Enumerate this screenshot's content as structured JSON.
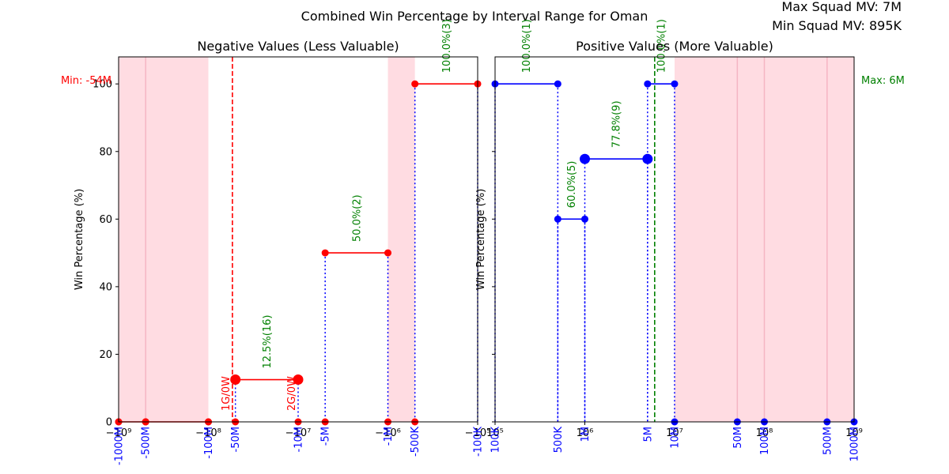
{
  "figure": {
    "title": "Combined Win Percentage by Interval Range for Oman",
    "max_squad_mv": "Max Squad MV: 7M",
    "min_squad_mv": "Min Squad MV: 895K"
  },
  "chart_data": [
    {
      "type": "line",
      "title": "Negative Values (Less Valuable)",
      "ylabel": "Win Percentage (%)",
      "xscale": "symlog",
      "xlim": [
        -1000000000,
        -100000
      ],
      "ylim": [
        0,
        108
      ],
      "yticks": [
        0,
        20,
        40,
        60,
        80,
        100
      ],
      "xticks": [
        {
          "value": -1000000000,
          "label": "−10⁹"
        },
        {
          "value": -100000000,
          "label": "−10⁸"
        },
        {
          "value": -10000000,
          "label": "−10⁷"
        },
        {
          "value": -1000000,
          "label": "−10⁶"
        },
        {
          "value": -100000,
          "label": "−10⁵"
        }
      ],
      "interval_labels": [
        {
          "value": -1000000000,
          "label": "-1000M"
        },
        {
          "value": -500000000,
          "label": "-500M"
        },
        {
          "value": -100000000,
          "label": "-100M"
        },
        {
          "value": -50000000,
          "label": "-50M"
        },
        {
          "value": -10000000,
          "label": "-10M"
        },
        {
          "value": -5000000,
          "label": "-5M"
        },
        {
          "value": -1000000,
          "label": "-1M"
        },
        {
          "value": -500000,
          "label": "-500K"
        },
        {
          "value": -100000,
          "label": "-100K"
        }
      ],
      "line_color": "#ff0000",
      "segments": [
        {
          "x0": -1000000000,
          "x1": -500000000,
          "y": 0,
          "marker": "small"
        },
        {
          "x0": -500000000,
          "x1": -100000000,
          "y": 0,
          "marker": "small"
        },
        {
          "x0": -50000000,
          "x1": -10000000,
          "y": 12.5,
          "marker": "large",
          "label": "12.5%(16)"
        },
        {
          "x0": -5000000,
          "x1": -1000000,
          "y": 50,
          "marker": "small",
          "label": "50.0%(2)"
        },
        {
          "x0": -500000,
          "x1": -100000,
          "y": 100,
          "marker": "small",
          "label": "100.0%(3)"
        }
      ],
      "zero_points": [
        -1000000000,
        -500000000,
        -100000000,
        -50000000,
        -10000000,
        -5000000,
        -1000000,
        -500000
      ],
      "shaded_ranges": [
        [
          -1000000000,
          -100000000
        ],
        [
          -1000000,
          -500000
        ]
      ],
      "shade_dividers": [
        -500000000
      ],
      "reference_line": {
        "x": -54000000,
        "color": "#ff0000",
        "label": "Min: -54M"
      },
      "side_notes": [
        {
          "x": -54000000,
          "label": "1G/0W"
        },
        {
          "x": -10000000,
          "label": "2G/0W"
        }
      ]
    },
    {
      "type": "line",
      "title": "Positive Values (More Valuable)",
      "ylabel": "Win Percentage (%)",
      "xscale": "log",
      "xlim": [
        100000,
        1000000000
      ],
      "ylim": [
        0,
        108
      ],
      "xticks": [
        {
          "value": 100000,
          "label": "10⁵"
        },
        {
          "value": 1000000,
          "label": "10⁶"
        },
        {
          "value": 10000000,
          "label": "10⁷"
        },
        {
          "value": 100000000,
          "label": "10⁸"
        },
        {
          "value": 1000000000,
          "label": "10⁹"
        }
      ],
      "interval_labels": [
        {
          "value": 100000,
          "label": "100K"
        },
        {
          "value": 500000,
          "label": "500K"
        },
        {
          "value": 1000000,
          "label": "1M"
        },
        {
          "value": 5000000,
          "label": "5M"
        },
        {
          "value": 10000000,
          "label": "10M"
        },
        {
          "value": 50000000,
          "label": "50M"
        },
        {
          "value": 100000000,
          "label": "100M"
        },
        {
          "value": 500000000,
          "label": "500M"
        },
        {
          "value": 1000000000,
          "label": "1000M"
        }
      ],
      "line_color": "#0000ff",
      "segments": [
        {
          "x0": 100000,
          "x1": 500000,
          "y": 100,
          "marker": "small",
          "label": "100.0%(1)"
        },
        {
          "x0": 500000,
          "x1": 1000000,
          "y": 60,
          "marker": "small",
          "label": "60.0%(5)"
        },
        {
          "x0": 1000000,
          "x1": 5000000,
          "y": 77.8,
          "marker": "large",
          "label": "77.8%(9)"
        },
        {
          "x0": 5000000,
          "x1": 10000000,
          "y": 100,
          "marker": "small",
          "label": "100.0%(1)"
        }
      ],
      "zero_points": [
        10000000,
        50000000,
        100000000,
        500000000,
        1000000000
      ],
      "shaded_ranges": [
        [
          10000000,
          1000000000
        ]
      ],
      "shade_dividers": [
        50000000,
        100000000,
        500000000
      ],
      "reference_line": {
        "x": 6000000,
        "color": "#008000",
        "label": "Max: 6M"
      },
      "side_notes": []
    }
  ]
}
